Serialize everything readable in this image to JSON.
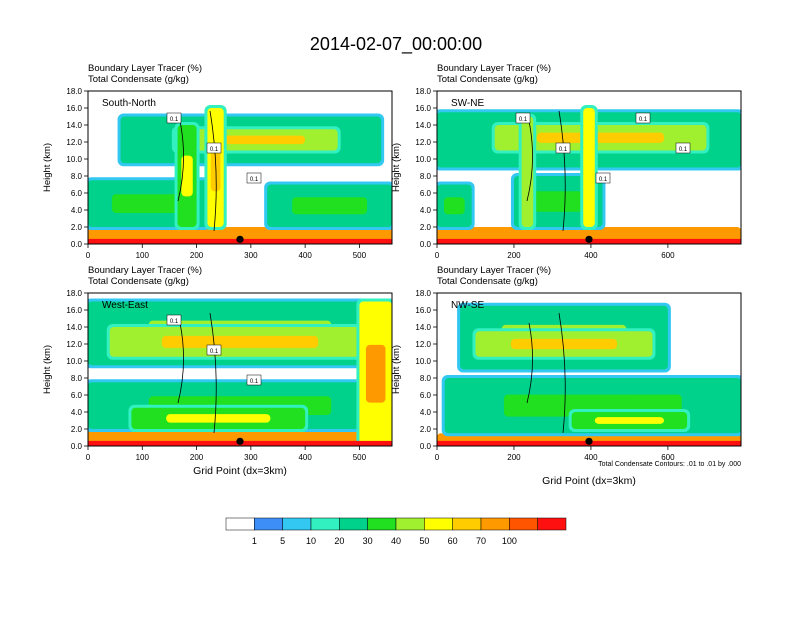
{
  "page_title": "2014-02-07_00:00:00",
  "chart_data": [
    {
      "type": "heatmap",
      "panel_label": "South-North",
      "title_line1": "Boundary Layer Tracer    (%)",
      "title_line2": "Total Condensate    (g/kg)",
      "ylabel": "Height (km)",
      "xlabel": "",
      "xlim": [
        0,
        560
      ],
      "ylim": [
        0,
        18
      ],
      "xticks": [
        0,
        100,
        200,
        300,
        400,
        500
      ],
      "yticks": [
        "0.0",
        "2.0",
        "4.0",
        "6.0",
        "8.0",
        "10.0",
        "12.0",
        "14.0",
        "16.0",
        "18.0"
      ],
      "marker_x": 280,
      "contour_labels": [
        "0.1",
        "0.1",
        "0.1"
      ],
      "contour_level": 0.01,
      "features": [
        {
          "x0": 0,
          "x1": 560,
          "y0": 0,
          "y1": 2.0,
          "value": 70
        },
        {
          "x0": 60,
          "x1": 540,
          "y0": 9.5,
          "y1": 15.0,
          "value": 25
        },
        {
          "x0": 160,
          "x1": 460,
          "y0": 11.0,
          "y1": 13.5,
          "value": 45
        },
        {
          "x0": 0,
          "x1": 220,
          "y0": 2.0,
          "y1": 7.5,
          "value": 20
        },
        {
          "x0": 330,
          "x1": 560,
          "y0": 2.0,
          "y1": 7.0,
          "value": 20
        },
        {
          "x0": 165,
          "x1": 200,
          "y0": 2.0,
          "y1": 14.0,
          "value": 35
        },
        {
          "x0": 220,
          "x1": 250,
          "y0": 2.0,
          "y1": 16.0,
          "value": 50
        }
      ]
    },
    {
      "type": "heatmap",
      "panel_label": "SW-NE",
      "title_line1": "Boundary Layer Tracer    (%)",
      "title_line2": "Total Condensate    (g/kg)",
      "ylabel": "Height (km)",
      "xlabel": "",
      "xlim": [
        0,
        790
      ],
      "ylim": [
        0,
        18
      ],
      "xticks": [
        0,
        200,
        400,
        600
      ],
      "yticks": [
        "0.0",
        "2.0",
        "4.0",
        "6.0",
        "8.0",
        "10.0",
        "12.0",
        "14.0",
        "16.0",
        "18.0"
      ],
      "marker_x": 395,
      "contour_labels": [
        "0.1",
        "0.1",
        "0.1",
        "0.1",
        "0.1"
      ],
      "contour_level": 0.01,
      "features": [
        {
          "x0": 0,
          "x1": 790,
          "y0": 0,
          "y1": 2.0,
          "value": 70
        },
        {
          "x0": 0,
          "x1": 790,
          "y0": 9.0,
          "y1": 15.5,
          "value": 25
        },
        {
          "x0": 150,
          "x1": 700,
          "y0": 11.0,
          "y1": 14.0,
          "value": 45
        },
        {
          "x0": 0,
          "x1": 90,
          "y0": 2.0,
          "y1": 7.0,
          "value": 20
        },
        {
          "x0": 200,
          "x1": 430,
          "y0": 2.0,
          "y1": 8.0,
          "value": 20
        },
        {
          "x0": 220,
          "x1": 250,
          "y0": 2.0,
          "y1": 15.0,
          "value": 40
        },
        {
          "x0": 380,
          "x1": 410,
          "y0": 2.0,
          "y1": 16.0,
          "value": 55
        }
      ]
    },
    {
      "type": "heatmap",
      "panel_label": "West-East",
      "title_line1": "Boundary Layer Tracer    (%)",
      "title_line2": "Total Condensate    (g/kg)",
      "ylabel": "Height (km)",
      "xlabel": "Grid Point (dx=3km)",
      "xlim": [
        0,
        560
      ],
      "ylim": [
        0,
        18
      ],
      "xticks": [
        0,
        100,
        200,
        300,
        400,
        500
      ],
      "yticks": [
        "0.0",
        "2.0",
        "4.0",
        "6.0",
        "8.0",
        "10.0",
        "12.0",
        "14.0",
        "16.0",
        "18.0"
      ],
      "marker_x": 280,
      "contour_labels": [
        "0.1",
        "0.1",
        "0.1"
      ],
      "contour_level": 0.01,
      "features": [
        {
          "x0": 0,
          "x1": 560,
          "y0": 0,
          "y1": 2.0,
          "value": 70
        },
        {
          "x0": 0,
          "x1": 560,
          "y0": 9.5,
          "y1": 17.0,
          "value": 25
        },
        {
          "x0": 40,
          "x1": 520,
          "y0": 10.5,
          "y1": 14.0,
          "value": 45
        },
        {
          "x0": 0,
          "x1": 560,
          "y0": 2.0,
          "y1": 7.5,
          "value": 20
        },
        {
          "x0": 80,
          "x1": 400,
          "y0": 2.0,
          "y1": 4.5,
          "value": 35
        },
        {
          "x0": 500,
          "x1": 560,
          "y0": 0,
          "y1": 17.0,
          "value": 55
        }
      ]
    },
    {
      "type": "heatmap",
      "panel_label": "NW-SE",
      "title_line1": "Boundary Layer Tracer    (%)",
      "title_line2": "Total Condensate    (g/kg)",
      "ylabel": "Height (km)",
      "xlabel": "Grid Point (dx=3km)",
      "xlim": [
        0,
        790
      ],
      "ylim": [
        0,
        18
      ],
      "xticks": [
        0,
        200,
        400,
        600
      ],
      "yticks": [
        "0.0",
        "2.0",
        "4.0",
        "6.0",
        "8.0",
        "10.0",
        "12.0",
        "14.0",
        "16.0",
        "18.0"
      ],
      "marker_x": 395,
      "contour_labels": [],
      "contour_level": 0.01,
      "footnote": "Total Condensate Contours: .01 to .01 by .000",
      "features": [
        {
          "x0": 0,
          "x1": 790,
          "y0": 0,
          "y1": 1.5,
          "value": 70
        },
        {
          "x0": 60,
          "x1": 600,
          "y0": 9.0,
          "y1": 16.5,
          "value": 25
        },
        {
          "x0": 100,
          "x1": 560,
          "y0": 10.5,
          "y1": 13.5,
          "value": 45
        },
        {
          "x0": 20,
          "x1": 790,
          "y0": 1.5,
          "y1": 8.0,
          "value": 20
        },
        {
          "x0": 350,
          "x1": 650,
          "y0": 2.0,
          "y1": 4.0,
          "value": 35
        }
      ]
    }
  ],
  "colorbar": {
    "labels": [
      "1",
      "5",
      "10",
      "20",
      "30",
      "40",
      "50",
      "60",
      "70",
      "100"
    ],
    "colors": [
      "#ffffff",
      "#3e8ef7",
      "#32c8f2",
      "#33f0c0",
      "#00d28c",
      "#20e020",
      "#a0f030",
      "#ffff00",
      "#ffcc00",
      "#ff9900",
      "#ff5500",
      "#ff1010"
    ]
  },
  "colors": {
    "marker": "#000000",
    "contour": "#000000"
  }
}
